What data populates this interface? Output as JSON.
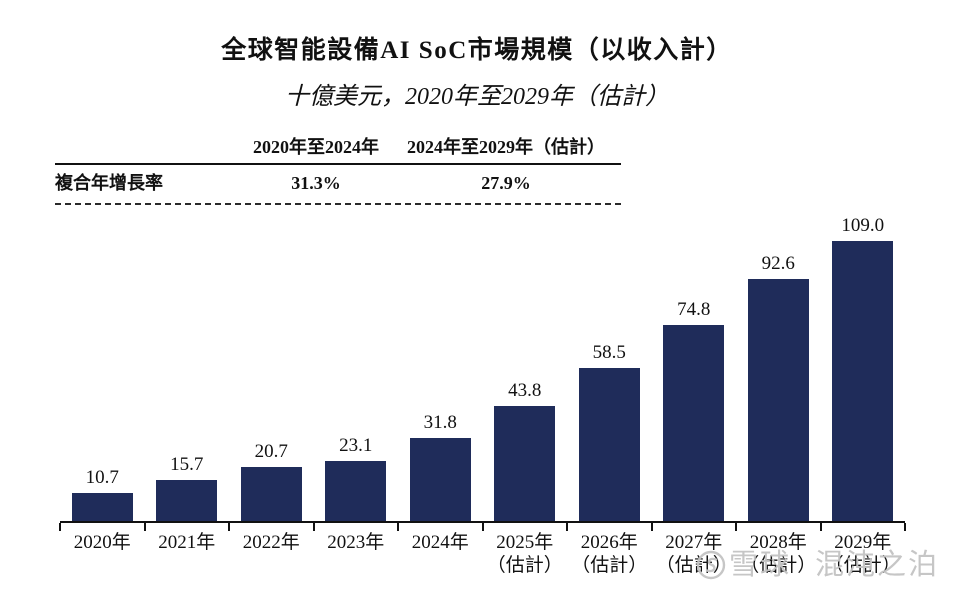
{
  "title": "全球智能設備AI SoC市場規模（以收入計）",
  "subtitle": "十億美元，2020年至2029年（估計）",
  "cagr_table": {
    "col_headers": [
      "2020年至2024年",
      "2024年至2029年（估計）"
    ],
    "row_label": "複合年增長率",
    "values": [
      "31.3%",
      "27.9%"
    ]
  },
  "chart_data": {
    "type": "bar",
    "title": "全球智能設備AI SoC市場規模（以收入計）",
    "unit": "十億美元",
    "categories": [
      "2020年",
      "2021年",
      "2022年",
      "2023年",
      "2024年",
      "2025年",
      "2026年",
      "2027年",
      "2028年",
      "2029年"
    ],
    "category_sublabels": [
      "",
      "",
      "",
      "",
      "",
      "（估計）",
      "（估計）",
      "（估計）",
      "（估計）",
      "（估計）"
    ],
    "values": [
      10.7,
      15.7,
      20.7,
      23.1,
      31.8,
      43.8,
      58.5,
      74.8,
      92.6,
      109.0
    ],
    "value_labels": [
      "10.7",
      "15.7",
      "20.7",
      "23.1",
      "31.8",
      "43.8",
      "58.5",
      "74.8",
      "92.6",
      "109.0"
    ],
    "ylim": [
      0,
      117
    ],
    "bar_color": "#1F2C5A",
    "grid": false,
    "legend_position": "none",
    "xlabel": "",
    "ylabel": ""
  },
  "watermark": {
    "brand": "雪球",
    "user": "混沌之泊"
  }
}
